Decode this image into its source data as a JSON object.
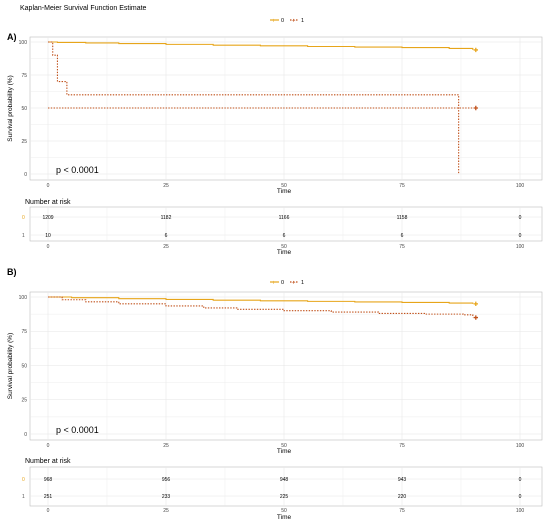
{
  "title": "Kaplan-Meier Survival Function Estimate",
  "colors": {
    "group0": "#E7A51A",
    "group1": "#C0501A",
    "grid": "#e6e6e6",
    "axis": "#333333"
  },
  "chart_data": [
    {
      "type": "line",
      "panel_label": "A)",
      "legend": {
        "placement": "top-center",
        "entries": [
          "0",
          "1"
        ]
      },
      "xlabel": "Time",
      "ylabel": "Survival probability (%)",
      "xlim": [
        0,
        100
      ],
      "ylim": [
        0,
        100
      ],
      "xticks": [
        "0",
        "25",
        "50",
        "75",
        "100"
      ],
      "yticks": [
        "0",
        "25",
        "50",
        "75",
        "100"
      ],
      "grid": true,
      "annotation": "p < 0.0001",
      "series": [
        {
          "name": "0",
          "style": "solid",
          "censor_mark": true,
          "x": [
            0,
            2,
            8,
            15,
            25,
            35,
            45,
            55,
            65,
            75,
            85,
            90
          ],
          "y": [
            100,
            99.7,
            99.3,
            98.8,
            98.2,
            97.6,
            97.1,
            96.6,
            96.2,
            95.8,
            95.1,
            94
          ]
        },
        {
          "name": "1",
          "style": "dotted",
          "censor_mark": true,
          "x": [
            0,
            1,
            2,
            4,
            87,
            87
          ],
          "y": [
            100,
            90,
            70,
            60,
            60,
            0
          ]
        },
        {
          "name": "1",
          "style": "dotted",
          "censor_mark": true,
          "x": [
            0,
            90
          ],
          "y": [
            50,
            50
          ]
        }
      ],
      "risk_table": {
        "title": "Number at risk",
        "xlabel": "Time",
        "xticks": [
          "0",
          "25",
          "50",
          "75",
          "100"
        ],
        "rows": [
          {
            "group": "0",
            "values": [
              "1209",
              "1182",
              "1166",
              "1158",
              "0"
            ]
          },
          {
            "group": "1",
            "values": [
              "10",
              "6",
              "6",
              "6",
              "0"
            ]
          }
        ]
      }
    },
    {
      "type": "line",
      "panel_label": "B)",
      "legend": {
        "placement": "top-center",
        "entries": [
          "0",
          "1"
        ]
      },
      "xlabel": "Time",
      "ylabel": "Survival probability (%)",
      "xlim": [
        0,
        100
      ],
      "ylim": [
        0,
        100
      ],
      "xticks": [
        "0",
        "25",
        "50",
        "75",
        "100"
      ],
      "yticks": [
        "0",
        "25",
        "50",
        "75",
        "100"
      ],
      "grid": true,
      "annotation": "p < 0.0001",
      "series": [
        {
          "name": "0",
          "style": "solid",
          "censor_mark": true,
          "x": [
            0,
            5,
            15,
            25,
            35,
            45,
            55,
            65,
            75,
            85,
            90
          ],
          "y": [
            100,
            99.5,
            98.8,
            98.2,
            97.7,
            97.2,
            96.8,
            96.4,
            96,
            95.6,
            95
          ]
        },
        {
          "name": "1",
          "style": "dotted",
          "censor_mark": true,
          "x": [
            0,
            3,
            8,
            15,
            25,
            33,
            40,
            50,
            60,
            70,
            80,
            88,
            90
          ],
          "y": [
            100,
            98,
            96.5,
            95,
            93.5,
            92,
            91,
            90,
            89,
            88,
            87.5,
            87,
            85
          ]
        }
      ],
      "risk_table": {
        "title": "Number at risk",
        "xlabel": "Time",
        "xticks": [
          "0",
          "25",
          "50",
          "75",
          "100"
        ],
        "rows": [
          {
            "group": "0",
            "values": [
              "968",
              "956",
              "948",
              "943",
              "0"
            ]
          },
          {
            "group": "1",
            "values": [
              "251",
              "233",
              "225",
              "220",
              "0"
            ]
          }
        ]
      }
    }
  ]
}
